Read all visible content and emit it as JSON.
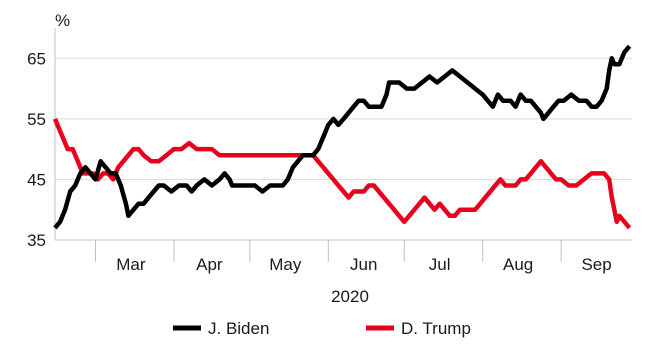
{
  "chart_data": {
    "type": "line",
    "ylabel": "%",
    "xlabel": "2020",
    "ylim": [
      35,
      70
    ],
    "yticks": [
      35,
      45,
      55,
      65
    ],
    "x_start": "2020-02-14",
    "x_end": "2020-09-29",
    "month_labels": [
      {
        "label": "Mar",
        "date": "2020-03-15"
      },
      {
        "label": "Apr",
        "date": "2020-04-15"
      },
      {
        "label": "May",
        "date": "2020-05-15"
      },
      {
        "label": "Jun",
        "date": "2020-06-15"
      },
      {
        "label": "Jul",
        "date": "2020-07-15"
      },
      {
        "label": "Aug",
        "date": "2020-08-15"
      },
      {
        "label": "Sep",
        "date": "2020-09-15"
      }
    ],
    "month_boundaries": [
      "2020-03-01",
      "2020-04-01",
      "2020-05-01",
      "2020-06-01",
      "2020-07-01",
      "2020-08-01",
      "2020-09-01"
    ],
    "grid": true,
    "legend": "bottom",
    "series": [
      {
        "name": "J. Biden",
        "color": "#000000",
        "points": [
          [
            "2020-02-14",
            37
          ],
          [
            "2020-02-16",
            38
          ],
          [
            "2020-02-18",
            40
          ],
          [
            "2020-02-20",
            43
          ],
          [
            "2020-02-22",
            44
          ],
          [
            "2020-02-24",
            46
          ],
          [
            "2020-02-26",
            47
          ],
          [
            "2020-02-28",
            46
          ],
          [
            "2020-03-01",
            45
          ],
          [
            "2020-03-03",
            48
          ],
          [
            "2020-03-05",
            47
          ],
          [
            "2020-03-07",
            46
          ],
          [
            "2020-03-09",
            46
          ],
          [
            "2020-03-11",
            44
          ],
          [
            "2020-03-13",
            41
          ],
          [
            "2020-03-14",
            39
          ],
          [
            "2020-03-16",
            40
          ],
          [
            "2020-03-18",
            41
          ],
          [
            "2020-03-20",
            41
          ],
          [
            "2020-03-22",
            42
          ],
          [
            "2020-03-24",
            43
          ],
          [
            "2020-03-26",
            44
          ],
          [
            "2020-03-28",
            44
          ],
          [
            "2020-03-31",
            43
          ],
          [
            "2020-04-03",
            44
          ],
          [
            "2020-04-06",
            44
          ],
          [
            "2020-04-08",
            43
          ],
          [
            "2020-04-10",
            44
          ],
          [
            "2020-04-13",
            45
          ],
          [
            "2020-04-16",
            44
          ],
          [
            "2020-04-19",
            45
          ],
          [
            "2020-04-21",
            46
          ],
          [
            "2020-04-23",
            45
          ],
          [
            "2020-04-24",
            44
          ],
          [
            "2020-04-27",
            44
          ],
          [
            "2020-04-30",
            44
          ],
          [
            "2020-05-03",
            44
          ],
          [
            "2020-05-06",
            43
          ],
          [
            "2020-05-09",
            44
          ],
          [
            "2020-05-12",
            44
          ],
          [
            "2020-05-14",
            44
          ],
          [
            "2020-05-16",
            45
          ],
          [
            "2020-05-18",
            47
          ],
          [
            "2020-05-20",
            48
          ],
          [
            "2020-05-22",
            49
          ],
          [
            "2020-05-24",
            49
          ],
          [
            "2020-05-26",
            49
          ],
          [
            "2020-05-28",
            50
          ],
          [
            "2020-05-30",
            52
          ],
          [
            "2020-06-01",
            54
          ],
          [
            "2020-06-03",
            55
          ],
          [
            "2020-06-05",
            54
          ],
          [
            "2020-06-07",
            55
          ],
          [
            "2020-06-09",
            56
          ],
          [
            "2020-06-11",
            57
          ],
          [
            "2020-06-13",
            58
          ],
          [
            "2020-06-15",
            58
          ],
          [
            "2020-06-17",
            57
          ],
          [
            "2020-06-19",
            57
          ],
          [
            "2020-06-22",
            57
          ],
          [
            "2020-06-24",
            59
          ],
          [
            "2020-06-25",
            61
          ],
          [
            "2020-06-27",
            61
          ],
          [
            "2020-06-29",
            61
          ],
          [
            "2020-07-02",
            60
          ],
          [
            "2020-07-05",
            60
          ],
          [
            "2020-07-08",
            61
          ],
          [
            "2020-07-11",
            62
          ],
          [
            "2020-07-14",
            61
          ],
          [
            "2020-07-17",
            62
          ],
          [
            "2020-07-20",
            63
          ],
          [
            "2020-07-23",
            62
          ],
          [
            "2020-07-26",
            61
          ],
          [
            "2020-07-29",
            60
          ],
          [
            "2020-08-01",
            59
          ],
          [
            "2020-08-03",
            58
          ],
          [
            "2020-08-05",
            57
          ],
          [
            "2020-08-07",
            59
          ],
          [
            "2020-08-09",
            58
          ],
          [
            "2020-08-12",
            58
          ],
          [
            "2020-08-14",
            57
          ],
          [
            "2020-08-16",
            59
          ],
          [
            "2020-08-18",
            58
          ],
          [
            "2020-08-20",
            58
          ],
          [
            "2020-08-22",
            57
          ],
          [
            "2020-08-24",
            56
          ],
          [
            "2020-08-25",
            55
          ],
          [
            "2020-08-27",
            56
          ],
          [
            "2020-08-29",
            57
          ],
          [
            "2020-08-31",
            58
          ],
          [
            "2020-09-02",
            58
          ],
          [
            "2020-09-05",
            59
          ],
          [
            "2020-09-08",
            58
          ],
          [
            "2020-09-11",
            58
          ],
          [
            "2020-09-13",
            57
          ],
          [
            "2020-09-15",
            57
          ],
          [
            "2020-09-17",
            58
          ],
          [
            "2020-09-19",
            60
          ],
          [
            "2020-09-20",
            63
          ],
          [
            "2020-09-21",
            65
          ],
          [
            "2020-09-22",
            64
          ],
          [
            "2020-09-24",
            64
          ],
          [
            "2020-09-26",
            66
          ],
          [
            "2020-09-28",
            67
          ]
        ]
      },
      {
        "name": "D. Trump",
        "color": "#e8001c",
        "points": [
          [
            "2020-02-14",
            55
          ],
          [
            "2020-02-15",
            54
          ],
          [
            "2020-02-17",
            52
          ],
          [
            "2020-02-19",
            50
          ],
          [
            "2020-02-21",
            50
          ],
          [
            "2020-02-23",
            48
          ],
          [
            "2020-02-25",
            46
          ],
          [
            "2020-02-27",
            46
          ],
          [
            "2020-02-29",
            46
          ],
          [
            "2020-03-02",
            45
          ],
          [
            "2020-03-04",
            46
          ],
          [
            "2020-03-06",
            46
          ],
          [
            "2020-03-08",
            45
          ],
          [
            "2020-03-10",
            47
          ],
          [
            "2020-03-12",
            48
          ],
          [
            "2020-03-14",
            49
          ],
          [
            "2020-03-16",
            50
          ],
          [
            "2020-03-18",
            50
          ],
          [
            "2020-03-20",
            49
          ],
          [
            "2020-03-23",
            48
          ],
          [
            "2020-03-26",
            48
          ],
          [
            "2020-03-29",
            49
          ],
          [
            "2020-04-01",
            50
          ],
          [
            "2020-04-04",
            50
          ],
          [
            "2020-04-07",
            51
          ],
          [
            "2020-04-10",
            50
          ],
          [
            "2020-04-13",
            50
          ],
          [
            "2020-04-16",
            50
          ],
          [
            "2020-04-19",
            49
          ],
          [
            "2020-04-22",
            49
          ],
          [
            "2020-04-26",
            49
          ],
          [
            "2020-04-30",
            49
          ],
          [
            "2020-05-04",
            49
          ],
          [
            "2020-05-08",
            49
          ],
          [
            "2020-05-12",
            49
          ],
          [
            "2020-05-16",
            49
          ],
          [
            "2020-05-20",
            49
          ],
          [
            "2020-05-23",
            49
          ],
          [
            "2020-05-26",
            49
          ],
          [
            "2020-05-28",
            48
          ],
          [
            "2020-05-30",
            47
          ],
          [
            "2020-06-01",
            46
          ],
          [
            "2020-06-03",
            45
          ],
          [
            "2020-06-05",
            44
          ],
          [
            "2020-06-07",
            43
          ],
          [
            "2020-06-09",
            42
          ],
          [
            "2020-06-11",
            43
          ],
          [
            "2020-06-13",
            43
          ],
          [
            "2020-06-15",
            43
          ],
          [
            "2020-06-17",
            44
          ],
          [
            "2020-06-19",
            44
          ],
          [
            "2020-06-21",
            43
          ],
          [
            "2020-06-23",
            42
          ],
          [
            "2020-06-25",
            41
          ],
          [
            "2020-06-27",
            40
          ],
          [
            "2020-06-29",
            39
          ],
          [
            "2020-07-01",
            38
          ],
          [
            "2020-07-03",
            39
          ],
          [
            "2020-07-05",
            40
          ],
          [
            "2020-07-07",
            41
          ],
          [
            "2020-07-09",
            42
          ],
          [
            "2020-07-11",
            41
          ],
          [
            "2020-07-13",
            40
          ],
          [
            "2020-07-15",
            41
          ],
          [
            "2020-07-17",
            40
          ],
          [
            "2020-07-19",
            39
          ],
          [
            "2020-07-21",
            39
          ],
          [
            "2020-07-23",
            40
          ],
          [
            "2020-07-25",
            40
          ],
          [
            "2020-07-27",
            40
          ],
          [
            "2020-07-29",
            40
          ],
          [
            "2020-07-31",
            41
          ],
          [
            "2020-08-02",
            42
          ],
          [
            "2020-08-04",
            43
          ],
          [
            "2020-08-06",
            44
          ],
          [
            "2020-08-08",
            45
          ],
          [
            "2020-08-10",
            44
          ],
          [
            "2020-08-12",
            44
          ],
          [
            "2020-08-14",
            44
          ],
          [
            "2020-08-16",
            45
          ],
          [
            "2020-08-18",
            45
          ],
          [
            "2020-08-20",
            46
          ],
          [
            "2020-08-22",
            47
          ],
          [
            "2020-08-24",
            48
          ],
          [
            "2020-08-26",
            47
          ],
          [
            "2020-08-28",
            46
          ],
          [
            "2020-08-30",
            45
          ],
          [
            "2020-09-01",
            45
          ],
          [
            "2020-09-04",
            44
          ],
          [
            "2020-09-07",
            44
          ],
          [
            "2020-09-10",
            45
          ],
          [
            "2020-09-13",
            46
          ],
          [
            "2020-09-16",
            46
          ],
          [
            "2020-09-18",
            46
          ],
          [
            "2020-09-20",
            45
          ],
          [
            "2020-09-21",
            42
          ],
          [
            "2020-09-22",
            40
          ],
          [
            "2020-09-23",
            38
          ],
          [
            "2020-09-24",
            39
          ],
          [
            "2020-09-26",
            38
          ],
          [
            "2020-09-28",
            37
          ]
        ]
      }
    ]
  }
}
